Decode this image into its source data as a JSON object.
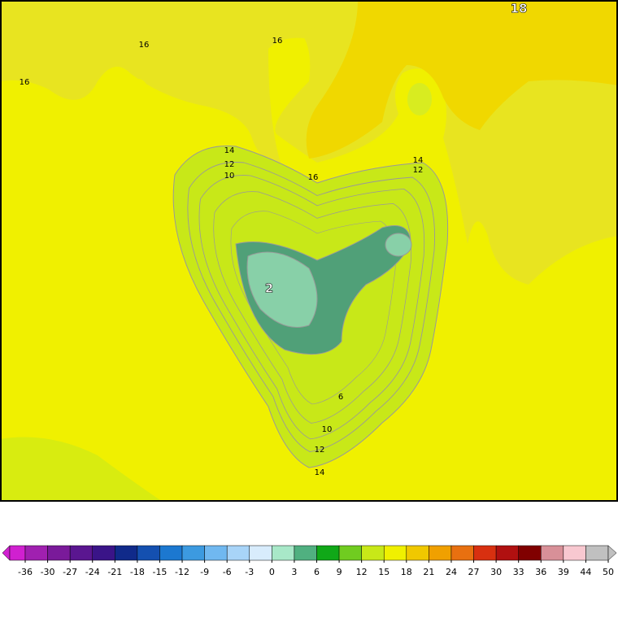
{
  "map": {
    "contour_labels": [
      16,
      16,
      16,
      14,
      12,
      10,
      16,
      14,
      12,
      6,
      10,
      12,
      14,
      2,
      18
    ],
    "colorbar": {
      "ticks": [
        -36,
        -30,
        -27,
        -24,
        -21,
        -18,
        -15,
        -12,
        -9,
        -6,
        -3,
        0,
        3,
        6,
        9,
        12,
        15,
        18,
        21,
        24,
        27,
        30,
        33,
        36,
        39,
        44,
        50
      ],
      "colors": [
        "#d020d0",
        "#a020b0",
        "#7a1a9a",
        "#5a1690",
        "#3a1488",
        "#102a8a",
        "#1450b0",
        "#1c78d0",
        "#3c9ae0",
        "#70b8f0",
        "#a8d4f8",
        "#d8ecfc",
        "#a8e8c8",
        "#50b080",
        "#10a818",
        "#70cc20",
        "#c8e818",
        "#f0f000",
        "#f0c800",
        "#f0a000",
        "#e87010",
        "#d83010",
        "#b01010",
        "#800000",
        "#d89098",
        "#f8c8d0",
        "#c0c0c0"
      ]
    }
  }
}
